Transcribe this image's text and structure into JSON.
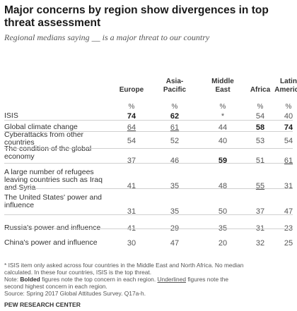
{
  "chart_data": {
    "type": "table",
    "title": "Major concerns by region show divergences in top threat assessment",
    "subtitle": "Regional medians saying __ is a major threat to our country",
    "columns": [
      "Europe",
      "Asia-Pacific",
      "Middle East",
      "Africa",
      "Latin America"
    ],
    "unit": "%",
    "rows": [
      {
        "label": "ISIS",
        "values": [
          "74",
          "62",
          "*",
          "54",
          "40"
        ]
      },
      {
        "label": "Global climate change",
        "values": [
          "64",
          "61",
          "44",
          "58",
          "74"
        ]
      },
      {
        "label": "Cyberattacks from other countries",
        "values": [
          "54",
          "52",
          "40",
          "53",
          "54"
        ]
      },
      {
        "label": "The condition of the global economy",
        "values": [
          "37",
          "46",
          "59",
          "51",
          "61"
        ]
      },
      {
        "label": "A large number of refugees leaving countries such as Iraq and Syria",
        "values": [
          "41",
          "35",
          "48",
          "55",
          "31"
        ]
      },
      {
        "label": "The United States' power and influence",
        "values": [
          "31",
          "35",
          "50",
          "37",
          "47"
        ]
      },
      {
        "label": "Russia's power and influence",
        "values": [
          "41",
          "29",
          "35",
          "31",
          "23"
        ]
      },
      {
        "label": "China's power and influence",
        "values": [
          "30",
          "47",
          "20",
          "32",
          "25"
        ]
      }
    ],
    "top_concern": [
      [
        0,
        0
      ],
      [
        0,
        1
      ],
      [
        1,
        3
      ],
      [
        1,
        4
      ],
      [
        3,
        2
      ]
    ],
    "second_concern": [
      [
        1,
        0
      ],
      [
        1,
        1
      ],
      [
        3,
        4
      ],
      [
        4,
        3
      ],
      [
        5,
        2
      ]
    ]
  },
  "header_lines": [
    [
      "Europe"
    ],
    [
      "Asia-",
      "Pacific"
    ],
    [
      "Middle",
      "East"
    ],
    [
      "Africa"
    ],
    [
      "Latin",
      "America"
    ]
  ],
  "row_label_lines": [
    [
      "ISIS"
    ],
    [
      "Global climate change"
    ],
    [
      "Cyberattacks from other",
      "countries"
    ],
    [
      "The condition of the global",
      "economy"
    ],
    [
      "A large number of refugees",
      "leaving countries such as Iraq",
      "and Syria"
    ],
    [
      "The United States' power and",
      "influence"
    ],
    [
      "Russia's power and influence"
    ],
    [
      "China's power and influence"
    ]
  ],
  "notes": {
    "line1": "* ISIS item only asked across four countries in the Middle East and North Africa. No median",
    "line2": "calculated. In these four countries, ISIS is the top threat.",
    "line3_a": "Note: ",
    "line3_bold": "Bolded",
    "line3_b": " figures note the top concern in each region. ",
    "line3_underlined": "Underlined",
    "line3_c": " figures note the",
    "line4": "second highest concern in each region.",
    "line5": "Source: Spring 2017 Global Attitudes Survey. Q17a-h."
  },
  "credit": "PEW RESEARCH CENTER"
}
